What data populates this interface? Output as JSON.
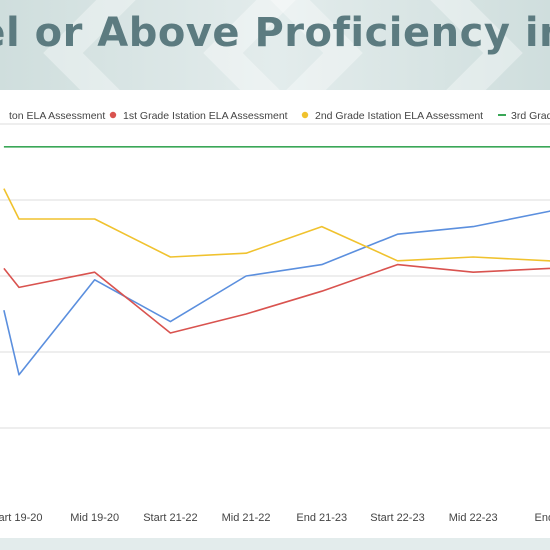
{
  "page": {
    "title": "vel or Above Proficiency in",
    "colors": {
      "banner_bg": "#d8e4e3",
      "title_color": "#5c7b80"
    }
  },
  "chart_data": {
    "type": "line",
    "title": "",
    "xlabel": "",
    "ylabel": "",
    "categories": [
      "tart 19-20",
      "Mid 19-20",
      "Start 21-22",
      "Mid 21-22",
      "End 21-23",
      "Start 22-23",
      "Mid 22-23",
      "End 2"
    ],
    "ylim": [
      0,
      100
    ],
    "grid": true,
    "legend_position": "top",
    "legend": [
      {
        "name": "ton ELA Assessment",
        "color": "#5b8fde"
      },
      {
        "name": "1st Grade Istation ELA Assessment",
        "color": "#d9534f"
      },
      {
        "name": "2nd Grade Istation ELA Assessment",
        "color": "#f0c22e"
      },
      {
        "name": "3rd Grad",
        "color": "#3aa757"
      }
    ],
    "series": [
      {
        "color": "#5b8fde",
        "x": [
          -0.2,
          0,
          1,
          2,
          3,
          4,
          5,
          6,
          7,
          7.3
        ],
        "values": [
          51,
          34,
          59,
          48,
          60,
          63,
          71,
          73,
          77,
          79
        ]
      },
      {
        "color": "#d9534f",
        "x": [
          -0.2,
          0,
          1,
          2,
          3,
          4,
          5,
          6,
          7,
          7.3
        ],
        "values": [
          62,
          57,
          61,
          45,
          50,
          56,
          63,
          61,
          62,
          62
        ]
      },
      {
        "color": "#f0c22e",
        "x": [
          -0.2,
          0,
          1,
          2,
          3,
          4,
          5,
          6,
          7,
          7.3
        ],
        "values": [
          83,
          75,
          75,
          65,
          66,
          73,
          64,
          65,
          64,
          63
        ]
      },
      {
        "color": "#3aa757",
        "x": [
          -0.2,
          7.3
        ],
        "values": [
          94,
          94
        ]
      }
    ]
  }
}
